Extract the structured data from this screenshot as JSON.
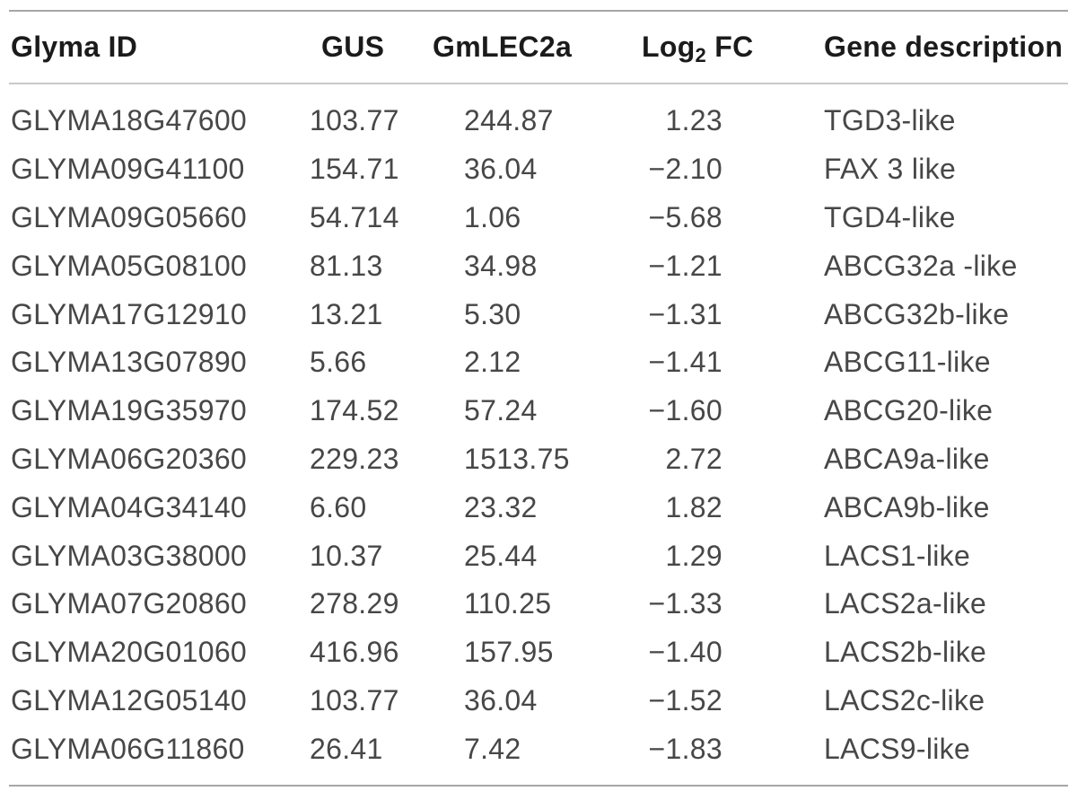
{
  "table": {
    "header": {
      "glyma_id": "Glyma ID",
      "gus": "GUS",
      "gmlec2a": "GmLEC2a",
      "log2fc_pre": "Log",
      "log2fc_sub": "2",
      "log2fc_post": " FC",
      "gene_description": "Gene description"
    },
    "rows": [
      {
        "glyma_id": "GLYMA18G47600",
        "gus": "103.77",
        "gmlec2a": "244.87",
        "log2_fc": "1.23",
        "gene_description": "TGD3-like"
      },
      {
        "glyma_id": "GLYMA09G41100",
        "gus": "154.71",
        "gmlec2a": "36.04",
        "log2_fc": "−2.10",
        "gene_description": "FAX 3 like"
      },
      {
        "glyma_id": "GLYMA09G05660",
        "gus": "54.714",
        "gmlec2a": "1.06",
        "log2_fc": "−5.68",
        "gene_description": "TGD4-like"
      },
      {
        "glyma_id": "GLYMA05G08100",
        "gus": "81.13",
        "gmlec2a": "34.98",
        "log2_fc": "−1.21",
        "gene_description": "ABCG32a -like"
      },
      {
        "glyma_id": "GLYMA17G12910",
        "gus": "13.21",
        "gmlec2a": "5.30",
        "log2_fc": "−1.31",
        "gene_description": "ABCG32b-like"
      },
      {
        "glyma_id": "GLYMA13G07890",
        "gus": "5.66",
        "gmlec2a": "2.12",
        "log2_fc": "−1.41",
        "gene_description": "ABCG11-like"
      },
      {
        "glyma_id": "GLYMA19G35970",
        "gus": "174.52",
        "gmlec2a": "57.24",
        "log2_fc": "−1.60",
        "gene_description": "ABCG20-like"
      },
      {
        "glyma_id": "GLYMA06G20360",
        "gus": "229.23",
        "gmlec2a": "1513.75",
        "log2_fc": "2.72",
        "gene_description": "ABCA9a-like"
      },
      {
        "glyma_id": "GLYMA04G34140",
        "gus": "6.60",
        "gmlec2a": "23.32",
        "log2_fc": "1.82",
        "gene_description": "ABCA9b-like"
      },
      {
        "glyma_id": "GLYMA03G38000",
        "gus": "10.37",
        "gmlec2a": "25.44",
        "log2_fc": "1.29",
        "gene_description": "LACS1-like"
      },
      {
        "glyma_id": "GLYMA07G20860",
        "gus": "278.29",
        "gmlec2a": "110.25",
        "log2_fc": "−1.33",
        "gene_description": "LACS2a-like"
      },
      {
        "glyma_id": "GLYMA20G01060",
        "gus": "416.96",
        "gmlec2a": "157.95",
        "log2_fc": "−1.40",
        "gene_description": "LACS2b-like"
      },
      {
        "glyma_id": "GLYMA12G05140",
        "gus": "103.77",
        "gmlec2a": "36.04",
        "log2_fc": "−1.52",
        "gene_description": "LACS2c-like"
      },
      {
        "glyma_id": "GLYMA06G11860",
        "gus": "26.41",
        "gmlec2a": "7.42",
        "log2_fc": "−1.83",
        "gene_description": "LACS9-like"
      }
    ],
    "colors": {
      "rule_heavy": "#a6a6a6",
      "rule_light": "#c9c9c9",
      "header_text": "#1b1b1b",
      "body_text": "#474747"
    }
  }
}
